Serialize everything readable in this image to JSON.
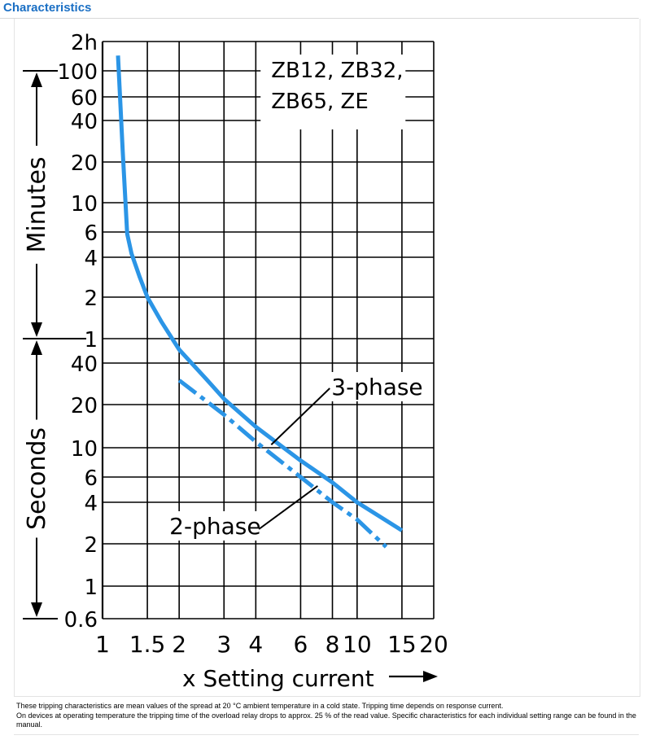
{
  "page": {
    "title": "Characteristics"
  },
  "notes": [
    "These tripping characteristics are mean values of the spread at 20 °C ambient temperature in a cold state. Tripping time depends on response current.",
    "On devices at operating temperature the tripping time of the overload relay drops to approx. 25 % of the read value. Specific characteristics for each individual setting range can be found in the manual."
  ],
  "chart_data": {
    "type": "line",
    "title_lines": [
      "ZB12, ZB32,",
      "ZB65, ZE"
    ],
    "xlabel": "x Setting current",
    "x_scale": "log",
    "xlim": [
      1,
      20
    ],
    "x_ticks": [
      1,
      1.5,
      2,
      3,
      4,
      6,
      8,
      10,
      15,
      20
    ],
    "y_scale": "log",
    "y_unit_seconds": true,
    "y_ticks": [
      {
        "label": "0.6",
        "seconds": 0.6
      },
      {
        "label": "1",
        "seconds": 1
      },
      {
        "label": "2",
        "seconds": 2
      },
      {
        "label": "4",
        "seconds": 4
      },
      {
        "label": "6",
        "seconds": 6
      },
      {
        "label": "10",
        "seconds": 10
      },
      {
        "label": "20",
        "seconds": 20
      },
      {
        "label": "40",
        "seconds": 40
      },
      {
        "label": "1",
        "seconds": 60
      },
      {
        "label": "2",
        "seconds": 120
      },
      {
        "label": "4",
        "seconds": 240
      },
      {
        "label": "6",
        "seconds": 360
      },
      {
        "label": "10",
        "seconds": 600
      },
      {
        "label": "20",
        "seconds": 1200
      },
      {
        "label": "40",
        "seconds": 2400
      },
      {
        "label": "60",
        "seconds": 3600
      },
      {
        "label": "100",
        "seconds": 6000
      },
      {
        "label": "2h",
        "seconds": 7200
      }
    ],
    "y_sections": [
      {
        "label": "Minutes",
        "from_seconds": 60,
        "to_seconds": 6000
      },
      {
        "label": "Seconds",
        "from_seconds": 0.6,
        "to_seconds": 60
      }
    ],
    "grid": true,
    "series": [
      {
        "name": "3-phase",
        "style": "solid",
        "color": "#2b95e6",
        "points": [
          {
            "x": 1.15,
            "y_seconds": 6600
          },
          {
            "x": 1.2,
            "y_seconds": 1440
          },
          {
            "x": 1.25,
            "y_seconds": 350
          },
          {
            "x": 1.3,
            "y_seconds": 255
          },
          {
            "x": 1.4,
            "y_seconds": 170
          },
          {
            "x": 1.5,
            "y_seconds": 120
          },
          {
            "x": 1.7,
            "y_seconds": 80
          },
          {
            "x": 2,
            "y_seconds": 50
          },
          {
            "x": 2.5,
            "y_seconds": 32
          },
          {
            "x": 3,
            "y_seconds": 22
          },
          {
            "x": 4,
            "y_seconds": 14
          },
          {
            "x": 6,
            "y_seconds": 8
          },
          {
            "x": 8,
            "y_seconds": 5.5
          },
          {
            "x": 10,
            "y_seconds": 4
          },
          {
            "x": 15,
            "y_seconds": 2.5
          }
        ]
      },
      {
        "name": "2-phase",
        "style": "dash-dot",
        "color": "#2b95e6",
        "points": [
          {
            "x": 2,
            "y_seconds": 30
          },
          {
            "x": 3,
            "y_seconds": 17
          },
          {
            "x": 4,
            "y_seconds": 11
          },
          {
            "x": 6,
            "y_seconds": 6
          },
          {
            "x": 8,
            "y_seconds": 4
          },
          {
            "x": 10,
            "y_seconds": 3
          },
          {
            "x": 13,
            "y_seconds": 1.9
          }
        ]
      }
    ]
  }
}
